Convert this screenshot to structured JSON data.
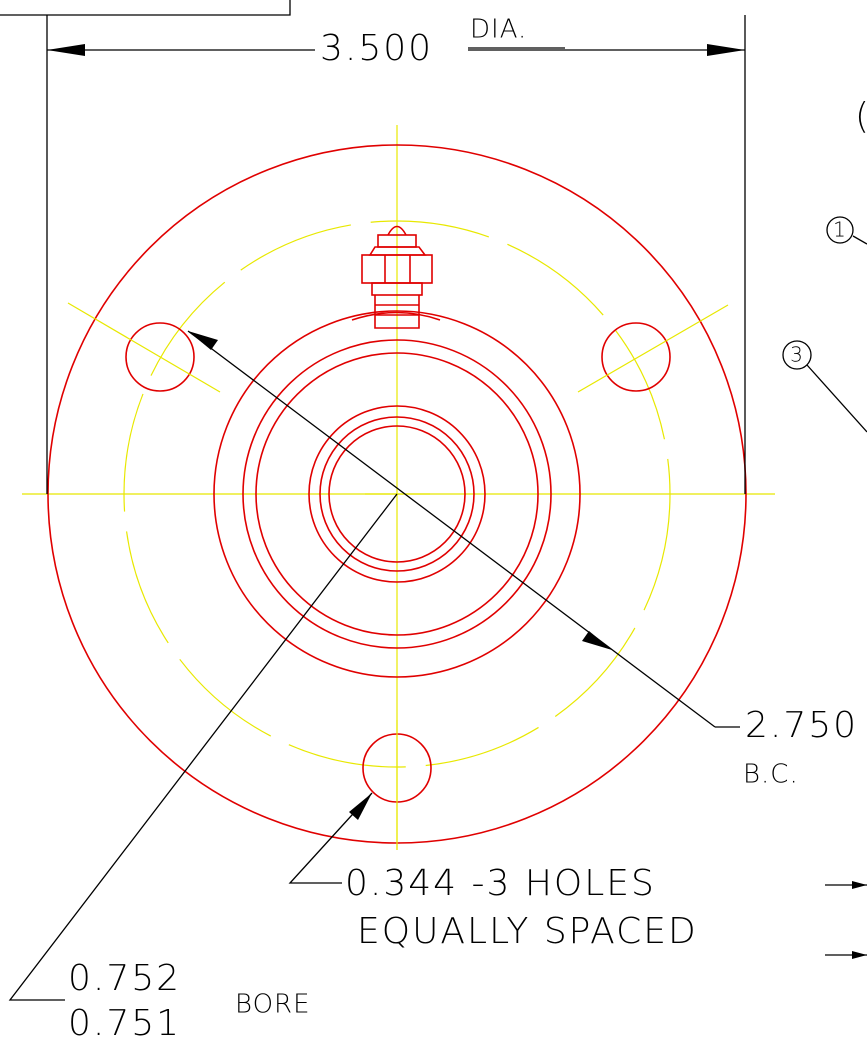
{
  "dimensions": {
    "overall_diameter": {
      "value": "3.500",
      "note": "DIA."
    },
    "bolt_circle": {
      "value": "2.750",
      "note": "B.C."
    },
    "holes": {
      "line1": "0.344 -3 HOLES",
      "line2": "EQUALLY SPACED"
    },
    "bore": {
      "upper": "0.752",
      "lower": "0.751",
      "note": "BORE"
    }
  },
  "balloons": {
    "edge": "(",
    "item1": "1",
    "item3": "3"
  }
}
